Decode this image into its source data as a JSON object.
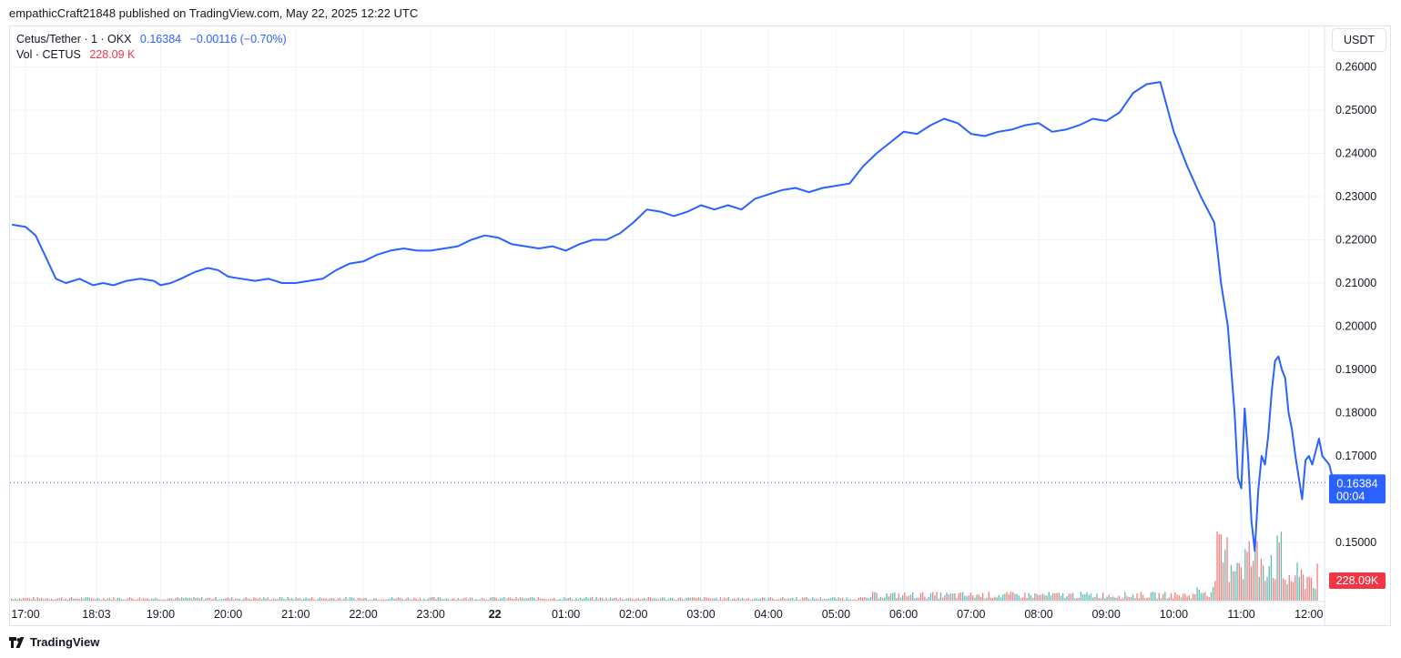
{
  "header": {
    "published_text": "empathicCraft21848 published on TradingView.com, May 22, 2025 12:22 UTC"
  },
  "legend": {
    "symbol": "Cetus/Tether · 1 · OKX",
    "last": "0.16384",
    "change": "−0.00116 (−0.70%)",
    "vol_label": "Vol · CETUS",
    "vol_value": "228.09 K"
  },
  "toolbar": {
    "currency_label": "USDT"
  },
  "badges": {
    "price": "0.16384",
    "countdown": "00:04",
    "volume": "228.09K"
  },
  "footer": {
    "brand": "TradingView"
  },
  "colors": {
    "line": "#2962ff",
    "vol_up": "#26a69a",
    "vol_down": "#ef5350",
    "grid": "#f0f3fa"
  },
  "chart_data": {
    "type": "line",
    "title": "Cetus/Tether · 1 · OKX",
    "y_axis_label": "USDT",
    "ylim": [
      0.14,
      0.26
    ],
    "y_ticks": [
      "0.26000",
      "0.25000",
      "0.24000",
      "0.23000",
      "0.22000",
      "0.21000",
      "0.20000",
      "0.19000",
      "0.18000",
      "0.17000",
      "0.15000"
    ],
    "x_ticks": [
      "17:00",
      "18:03",
      "19:00",
      "20:00",
      "21:00",
      "22:00",
      "23:00",
      "22",
      "01:00",
      "02:00",
      "03:00",
      "04:00",
      "05:00",
      "06:00",
      "07:00",
      "08:00",
      "09:00",
      "10:00",
      "11:00",
      "12:00"
    ],
    "x_range_hours": [
      -0.2,
      19.45
    ],
    "grid": true,
    "series": [
      {
        "name": "Cetus/Tether",
        "hours": [
          -0.2,
          0,
          0.15,
          0.3,
          0.45,
          0.6,
          0.8,
          1.0,
          1.15,
          1.3,
          1.5,
          1.7,
          1.9,
          2.0,
          2.15,
          2.3,
          2.5,
          2.7,
          2.85,
          3.0,
          3.2,
          3.4,
          3.6,
          3.8,
          4.0,
          4.2,
          4.4,
          4.6,
          4.8,
          5.0,
          5.2,
          5.4,
          5.6,
          5.8,
          6.0,
          6.2,
          6.4,
          6.6,
          6.8,
          7.0,
          7.2,
          7.4,
          7.6,
          7.8,
          8.0,
          8.2,
          8.4,
          8.6,
          8.8,
          9.0,
          9.2,
          9.4,
          9.6,
          9.8,
          10.0,
          10.2,
          10.4,
          10.6,
          10.8,
          11.0,
          11.2,
          11.4,
          11.6,
          11.8,
          12.0,
          12.2,
          12.4,
          12.6,
          12.8,
          13.0,
          13.2,
          13.4,
          13.6,
          13.8,
          14.0,
          14.2,
          14.4,
          14.6,
          14.8,
          15.0,
          15.2,
          15.4,
          15.6,
          15.8,
          16.0,
          16.2,
          16.4,
          16.6,
          16.8,
          17.0,
          17.2,
          17.4,
          17.6,
          17.7,
          17.8,
          17.85,
          17.9,
          17.95,
          18.0,
          18.05,
          18.1,
          18.15,
          18.2,
          18.25,
          18.3,
          18.35,
          18.4,
          18.45,
          18.5,
          18.55,
          18.6,
          18.65,
          18.7,
          18.75,
          18.8,
          18.85,
          18.9,
          18.95,
          19.0,
          19.05,
          19.1,
          19.15,
          19.2,
          19.25,
          19.3,
          19.35,
          19.4
        ],
        "values": [
          0.2235,
          0.223,
          0.221,
          0.216,
          0.211,
          0.21,
          0.211,
          0.2095,
          0.21,
          0.2095,
          0.2105,
          0.211,
          0.2105,
          0.2095,
          0.21,
          0.211,
          0.2125,
          0.2135,
          0.213,
          0.2115,
          0.211,
          0.2105,
          0.211,
          0.21,
          0.21,
          0.2105,
          0.211,
          0.213,
          0.2145,
          0.215,
          0.2165,
          0.2175,
          0.218,
          0.2175,
          0.2175,
          0.218,
          0.2185,
          0.22,
          0.221,
          0.2205,
          0.219,
          0.2185,
          0.218,
          0.2185,
          0.2175,
          0.219,
          0.22,
          0.22,
          0.2215,
          0.224,
          0.227,
          0.2265,
          0.2255,
          0.2265,
          0.228,
          0.227,
          0.228,
          0.227,
          0.2295,
          0.2305,
          0.2315,
          0.232,
          0.231,
          0.232,
          0.2325,
          0.233,
          0.237,
          0.24,
          0.2425,
          0.245,
          0.2445,
          0.2465,
          0.248,
          0.247,
          0.2445,
          0.244,
          0.245,
          0.2455,
          0.2465,
          0.247,
          0.245,
          0.2455,
          0.2465,
          0.248,
          0.2475,
          0.2495,
          0.254,
          0.256,
          0.2565,
          0.245,
          0.237,
          0.23,
          0.224,
          0.21,
          0.2,
          0.19,
          0.18,
          0.165,
          0.1625,
          0.181,
          0.17,
          0.155,
          0.148,
          0.162,
          0.17,
          0.168,
          0.175,
          0.185,
          0.192,
          0.193,
          0.19,
          0.188,
          0.18,
          0.176,
          0.17,
          0.165,
          0.16,
          0.169,
          0.17,
          0.168,
          0.171,
          0.174,
          0.17,
          0.169,
          0.168,
          0.165,
          0.164
        ]
      }
    ],
    "volume": {
      "label": "Vol · CETUS",
      "last": "228.09 K"
    }
  }
}
